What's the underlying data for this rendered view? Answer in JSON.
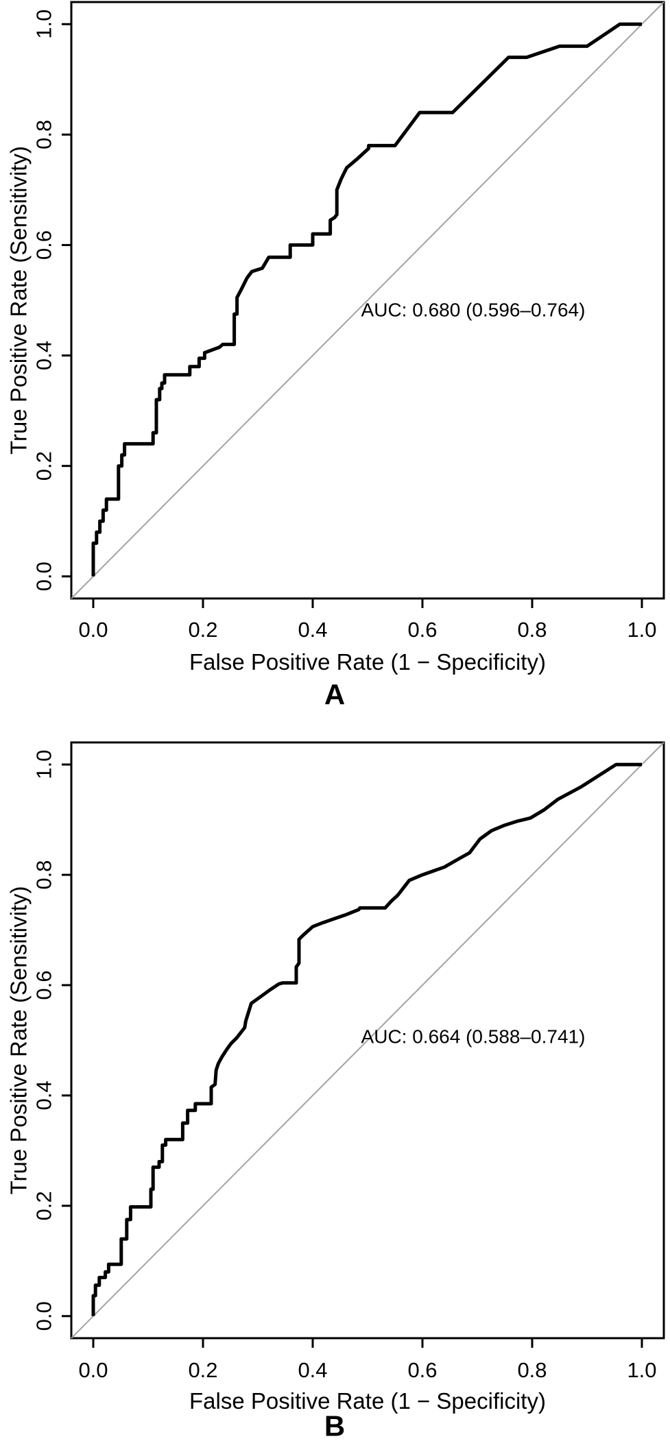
{
  "figure": {
    "background_color": "#ffffff",
    "panels": [
      {
        "panel_letter": "A",
        "auc_label": "AUC: 0.680 (0.596–0.764)",
        "x_axis": {
          "title": "False Positive Rate (1 − Specificity)",
          "tick_labels": [
            "0.0",
            "0.2",
            "0.4",
            "0.6",
            "0.8",
            "1.0"
          ]
        },
        "y_axis": {
          "title": "True Positive Rate (Sensitivity)",
          "tick_labels": [
            "0.0",
            "0.2",
            "0.4",
            "0.6",
            "0.8",
            "1.0"
          ]
        }
      },
      {
        "panel_letter": "B",
        "auc_label": "AUC: 0.664 (0.588–0.741)",
        "x_axis": {
          "title": "False Positive Rate (1 − Specificity)",
          "tick_labels": [
            "0.0",
            "0.2",
            "0.4",
            "0.6",
            "0.8",
            "1.0"
          ]
        },
        "y_axis": {
          "title": "True Positive Rate (Sensitivity)",
          "tick_labels": [
            "0.0",
            "0.2",
            "0.4",
            "0.6",
            "0.8",
            "1.0"
          ]
        }
      }
    ]
  },
  "colors": {
    "curve": "#000000",
    "diagonal_reference": "#a3a3a3",
    "axis": "#000000",
    "text": "#000000",
    "background": "#ffffff"
  },
  "chart_data": [
    {
      "type": "line",
      "title": "ROC curve A",
      "panel_letter": "A",
      "xlabel": "False Positive Rate (1 − Specificity)",
      "ylabel": "True Positive Rate (Sensitivity)",
      "xlim": [
        0,
        1
      ],
      "ylim": [
        0,
        1
      ],
      "x_ticks": [
        0.0,
        0.2,
        0.4,
        0.6,
        0.8,
        1.0
      ],
      "y_ticks": [
        0.0,
        0.2,
        0.4,
        0.6,
        0.8,
        1.0
      ],
      "grid": false,
      "auc": 0.68,
      "auc_ci_low": 0.596,
      "auc_ci_high": 0.764,
      "annotation": "AUC: 0.680 (0.596–0.764)",
      "reference_line": [
        [
          0,
          0
        ],
        [
          1,
          1
        ]
      ],
      "series": [
        {
          "name": "ROC step curve",
          "points": [
            [
              0,
              0
            ],
            [
              0,
              0.06
            ],
            [
              0.006,
              0.06
            ],
            [
              0.006,
              0.08
            ],
            [
              0.012,
              0.08
            ],
            [
              0.012,
              0.1
            ],
            [
              0.018,
              0.1
            ],
            [
              0.018,
              0.12
            ],
            [
              0.024,
              0.12
            ],
            [
              0.024,
              0.14
            ],
            [
              0.046,
              0.14
            ],
            [
              0.046,
              0.2
            ],
            [
              0.052,
              0.2
            ],
            [
              0.052,
              0.22
            ],
            [
              0.057,
              0.22
            ],
            [
              0.057,
              0.24
            ],
            [
              0.109,
              0.24
            ],
            [
              0.109,
              0.26
            ],
            [
              0.115,
              0.26
            ],
            [
              0.115,
              0.32
            ],
            [
              0.121,
              0.32
            ],
            [
              0.121,
              0.34
            ],
            [
              0.125,
              0.34
            ],
            [
              0.125,
              0.35
            ],
            [
              0.13,
              0.35
            ],
            [
              0.13,
              0.365
            ],
            [
              0.176,
              0.365
            ],
            [
              0.176,
              0.38
            ],
            [
              0.193,
              0.38
            ],
            [
              0.193,
              0.395
            ],
            [
              0.203,
              0.395
            ],
            [
              0.203,
              0.405
            ],
            [
              0.23,
              0.415
            ],
            [
              0.236,
              0.42
            ],
            [
              0.257,
              0.42
            ],
            [
              0.257,
              0.475
            ],
            [
              0.262,
              0.475
            ],
            [
              0.262,
              0.505
            ],
            [
              0.27,
              0.52
            ],
            [
              0.28,
              0.54
            ],
            [
              0.289,
              0.552
            ],
            [
              0.308,
              0.558
            ],
            [
              0.32,
              0.578
            ],
            [
              0.359,
              0.578
            ],
            [
              0.359,
              0.6
            ],
            [
              0.4,
              0.6
            ],
            [
              0.4,
              0.62
            ],
            [
              0.432,
              0.62
            ],
            [
              0.432,
              0.645
            ],
            [
              0.44,
              0.65
            ],
            [
              0.444,
              0.655
            ],
            [
              0.444,
              0.7
            ],
            [
              0.452,
              0.72
            ],
            [
              0.462,
              0.74
            ],
            [
              0.48,
              0.755
            ],
            [
              0.502,
              0.775
            ],
            [
              0.502,
              0.78
            ],
            [
              0.55,
              0.78
            ],
            [
              0.595,
              0.84
            ],
            [
              0.655,
              0.84
            ],
            [
              0.757,
              0.94
            ],
            [
              0.79,
              0.94
            ],
            [
              0.85,
              0.96
            ],
            [
              0.9,
              0.96
            ],
            [
              0.96,
              1
            ],
            [
              1,
              1
            ]
          ]
        }
      ]
    },
    {
      "type": "line",
      "title": "ROC curve B",
      "panel_letter": "B",
      "xlabel": "False Positive Rate (1 − Specificity)",
      "ylabel": "True Positive Rate (Sensitivity)",
      "xlim": [
        0,
        1
      ],
      "ylim": [
        0,
        1
      ],
      "x_ticks": [
        0.0,
        0.2,
        0.4,
        0.6,
        0.8,
        1.0
      ],
      "y_ticks": [
        0.0,
        0.2,
        0.4,
        0.6,
        0.8,
        1.0
      ],
      "grid": false,
      "auc": 0.664,
      "auc_ci_low": 0.588,
      "auc_ci_high": 0.741,
      "annotation": "AUC: 0.664 (0.588–0.741)",
      "reference_line": [
        [
          0,
          0
        ],
        [
          1,
          1
        ]
      ],
      "series": [
        {
          "name": "ROC step curve",
          "points": [
            [
              0,
              0
            ],
            [
              0,
              0.037
            ],
            [
              0.004,
              0.037
            ],
            [
              0.004,
              0.056
            ],
            [
              0.011,
              0.056
            ],
            [
              0.011,
              0.07
            ],
            [
              0.022,
              0.07
            ],
            [
              0.022,
              0.08
            ],
            [
              0.028,
              0.08
            ],
            [
              0.028,
              0.094
            ],
            [
              0.051,
              0.094
            ],
            [
              0.051,
              0.14
            ],
            [
              0.061,
              0.14
            ],
            [
              0.061,
              0.175
            ],
            [
              0.068,
              0.175
            ],
            [
              0.068,
              0.198
            ],
            [
              0.105,
              0.198
            ],
            [
              0.105,
              0.23
            ],
            [
              0.109,
              0.23
            ],
            [
              0.109,
              0.27
            ],
            [
              0.12,
              0.27
            ],
            [
              0.12,
              0.28
            ],
            [
              0.126,
              0.28
            ],
            [
              0.126,
              0.31
            ],
            [
              0.132,
              0.31
            ],
            [
              0.132,
              0.32
            ],
            [
              0.163,
              0.32
            ],
            [
              0.163,
              0.35
            ],
            [
              0.172,
              0.35
            ],
            [
              0.172,
              0.373
            ],
            [
              0.186,
              0.373
            ],
            [
              0.186,
              0.385
            ],
            [
              0.215,
              0.385
            ],
            [
              0.215,
              0.415
            ],
            [
              0.222,
              0.42
            ],
            [
              0.224,
              0.446
            ],
            [
              0.228,
              0.458
            ],
            [
              0.234,
              0.469
            ],
            [
              0.243,
              0.483
            ],
            [
              0.251,
              0.494
            ],
            [
              0.261,
              0.504
            ],
            [
              0.276,
              0.523
            ],
            [
              0.278,
              0.535
            ],
            [
              0.288,
              0.567
            ],
            [
              0.305,
              0.579
            ],
            [
              0.32,
              0.59
            ],
            [
              0.338,
              0.602
            ],
            [
              0.345,
              0.604
            ],
            [
              0.37,
              0.604
            ],
            [
              0.37,
              0.633
            ],
            [
              0.375,
              0.64
            ],
            [
              0.375,
              0.683
            ],
            [
              0.382,
              0.69
            ],
            [
              0.4,
              0.706
            ],
            [
              0.418,
              0.713
            ],
            [
              0.438,
              0.72
            ],
            [
              0.459,
              0.727
            ],
            [
              0.484,
              0.737
            ],
            [
              0.486,
              0.74
            ],
            [
              0.532,
              0.74
            ],
            [
              0.543,
              0.752
            ],
            [
              0.555,
              0.763
            ],
            [
              0.576,
              0.79
            ],
            [
              0.6,
              0.8
            ],
            [
              0.64,
              0.814
            ],
            [
              0.668,
              0.83
            ],
            [
              0.686,
              0.84
            ],
            [
              0.705,
              0.865
            ],
            [
              0.726,
              0.88
            ],
            [
              0.75,
              0.89
            ],
            [
              0.772,
              0.897
            ],
            [
              0.797,
              0.903
            ],
            [
              0.822,
              0.918
            ],
            [
              0.847,
              0.937
            ],
            [
              0.89,
              0.96
            ],
            [
              0.953,
              1
            ],
            [
              1,
              1
            ]
          ]
        }
      ]
    }
  ]
}
